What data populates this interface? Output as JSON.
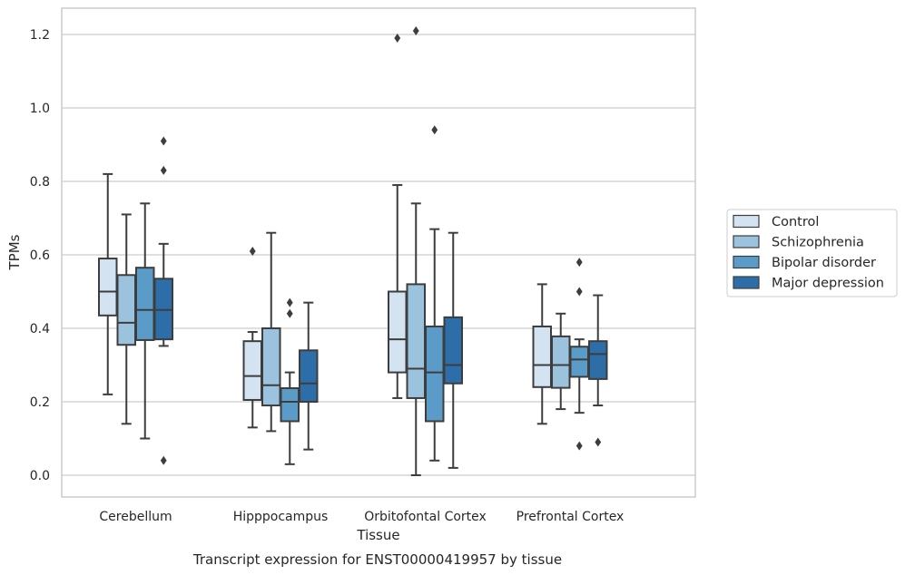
{
  "chart_data": {
    "type": "box",
    "title": "",
    "caption": "Transcript expression for ENST00000419957 by tissue",
    "xlabel": "Tissue",
    "ylabel": "TPMs",
    "ylim": [
      -0.06,
      1.27
    ],
    "yticks": [
      0.0,
      0.2,
      0.4,
      0.6,
      0.8,
      1.0,
      1.2
    ],
    "ytick_labels": [
      "0.0",
      "0.2",
      "0.4",
      "0.6",
      "0.8",
      "1.0",
      "1.2"
    ],
    "grid": "horizontal",
    "legend_position": "outside-right",
    "categories": [
      "Cerebellum",
      "Hipppocampus",
      "Orbitofontal Cortex",
      "Prefrontal Cortex"
    ],
    "series": [
      {
        "name": "Control",
        "color": "#d3e3f2",
        "boxes": [
          {
            "whislo": 0.22,
            "q1": 0.435,
            "med": 0.5,
            "q3": 0.59,
            "whishi": 0.82,
            "fliers": []
          },
          {
            "whislo": 0.13,
            "q1": 0.205,
            "med": 0.27,
            "q3": 0.365,
            "whishi": 0.39,
            "fliers": [
              0.61
            ]
          },
          {
            "whislo": 0.21,
            "q1": 0.28,
            "med": 0.37,
            "q3": 0.5,
            "whishi": 0.79,
            "fliers": [
              1.19
            ]
          },
          {
            "whislo": 0.14,
            "q1": 0.24,
            "med": 0.3,
            "q3": 0.405,
            "whishi": 0.52,
            "fliers": []
          }
        ]
      },
      {
        "name": "Schizophrenia",
        "color": "#9cc3dd",
        "boxes": [
          {
            "whislo": 0.14,
            "q1": 0.355,
            "med": 0.415,
            "q3": 0.545,
            "whishi": 0.71,
            "fliers": []
          },
          {
            "whislo": 0.12,
            "q1": 0.19,
            "med": 0.245,
            "q3": 0.4,
            "whishi": 0.66,
            "fliers": []
          },
          {
            "whislo": 0.0,
            "q1": 0.21,
            "med": 0.29,
            "q3": 0.52,
            "whishi": 0.74,
            "fliers": [
              1.21
            ]
          },
          {
            "whislo": 0.18,
            "q1": 0.238,
            "med": 0.3,
            "q3": 0.378,
            "whishi": 0.44,
            "fliers": []
          }
        ]
      },
      {
        "name": "Bipolar disorder",
        "color": "#5a9bc8",
        "boxes": [
          {
            "whislo": 0.1,
            "q1": 0.368,
            "med": 0.45,
            "q3": 0.565,
            "whishi": 0.74,
            "fliers": []
          },
          {
            "whislo": 0.03,
            "q1": 0.147,
            "med": 0.2,
            "q3": 0.237,
            "whishi": 0.28,
            "fliers": [
              0.44,
              0.47
            ]
          },
          {
            "whislo": 0.04,
            "q1": 0.147,
            "med": 0.28,
            "q3": 0.405,
            "whishi": 0.67,
            "fliers": [
              0.94
            ]
          },
          {
            "whislo": 0.17,
            "q1": 0.268,
            "med": 0.315,
            "q3": 0.35,
            "whishi": 0.37,
            "fliers": [
              0.08,
              0.5,
              0.58
            ]
          }
        ]
      },
      {
        "name": "Major depression",
        "color": "#2d6ea8",
        "boxes": [
          {
            "whislo": 0.352,
            "q1": 0.37,
            "med": 0.45,
            "q3": 0.535,
            "whishi": 0.63,
            "fliers": [
              0.04,
              0.83,
              0.91
            ]
          },
          {
            "whislo": 0.07,
            "q1": 0.2,
            "med": 0.25,
            "q3": 0.34,
            "whishi": 0.47,
            "fliers": []
          },
          {
            "whislo": 0.02,
            "q1": 0.25,
            "med": 0.3,
            "q3": 0.43,
            "whishi": 0.66,
            "fliers": []
          },
          {
            "whislo": 0.19,
            "q1": 0.262,
            "med": 0.33,
            "q3": 0.365,
            "whishi": 0.49,
            "fliers": [
              0.09
            ]
          }
        ]
      }
    ]
  }
}
